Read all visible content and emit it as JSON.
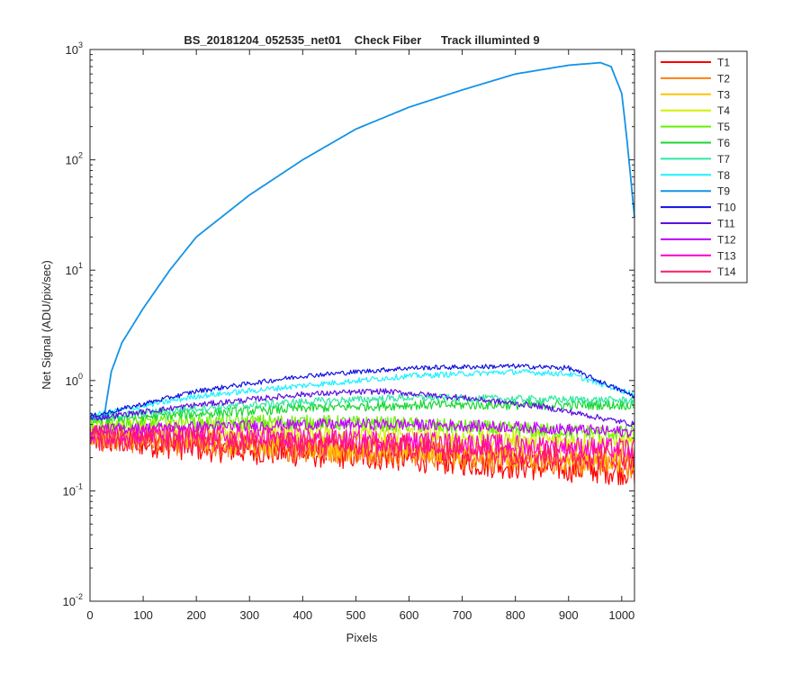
{
  "chart_data": {
    "type": "line",
    "title": "BS_20181204_052535_net01    Check Fiber      Track illuminted 9",
    "xlabel": "Pixels",
    "ylabel": "Net Signal (ADU/pix/sec)",
    "xlim": [
      0,
      1024
    ],
    "ylim": [
      0.01,
      1000
    ],
    "yscale": "log",
    "grid": false,
    "legend_position": "outside-top-right",
    "x_ticks": [
      0,
      100,
      200,
      300,
      400,
      500,
      600,
      700,
      800,
      900,
      1000
    ],
    "y_ticks": [
      {
        "value": 0.01,
        "base": "10",
        "exp": "-2"
      },
      {
        "value": 0.1,
        "base": "10",
        "exp": "-1"
      },
      {
        "value": 1,
        "base": "10",
        "exp": "0"
      },
      {
        "value": 10,
        "base": "10",
        "exp": "1"
      },
      {
        "value": 100,
        "base": "10",
        "exp": "2"
      },
      {
        "value": 1000,
        "base": "10",
        "exp": "3"
      }
    ],
    "series": [
      {
        "name": "T1",
        "color": "#ff0000",
        "noise": 0.3,
        "x": [
          0,
          200,
          400,
          600,
          800,
          1024
        ],
        "y": [
          0.3,
          0.25,
          0.22,
          0.2,
          0.17,
          0.15
        ]
      },
      {
        "name": "T2",
        "color": "#ff7f0e",
        "noise": 0.28,
        "x": [
          0,
          200,
          400,
          600,
          800,
          1024
        ],
        "y": [
          0.3,
          0.27,
          0.24,
          0.22,
          0.19,
          0.17
        ]
      },
      {
        "name": "T3",
        "color": "#ffc400",
        "noise": 0.26,
        "x": [
          0,
          200,
          400,
          600,
          800,
          1024
        ],
        "y": [
          0.32,
          0.29,
          0.26,
          0.24,
          0.21,
          0.19
        ]
      },
      {
        "name": "T4",
        "color": "#d4f000",
        "noise": 0.22,
        "x": [
          0,
          200,
          400,
          600,
          800,
          1024
        ],
        "y": [
          0.36,
          0.36,
          0.35,
          0.32,
          0.29,
          0.27
        ]
      },
      {
        "name": "T5",
        "color": "#66f000",
        "noise": 0.16,
        "x": [
          0,
          200,
          400,
          600,
          800,
          1024
        ],
        "y": [
          0.4,
          0.42,
          0.42,
          0.4,
          0.36,
          0.33
        ]
      },
      {
        "name": "T6",
        "color": "#1ad633",
        "noise": 0.1,
        "x": [
          0,
          200,
          400,
          600,
          800,
          1024
        ],
        "y": [
          0.44,
          0.5,
          0.56,
          0.6,
          0.6,
          0.6
        ]
      },
      {
        "name": "T7",
        "color": "#2ee8a0",
        "noise": 0.08,
        "x": [
          0,
          200,
          400,
          600,
          800,
          1024
        ],
        "y": [
          0.46,
          0.56,
          0.64,
          0.7,
          0.68,
          0.66
        ]
      },
      {
        "name": "T8",
        "color": "#1ef0ff",
        "noise": 0.06,
        "x": [
          0,
          200,
          400,
          600,
          800,
          900,
          1024
        ],
        "y": [
          0.48,
          0.72,
          0.9,
          1.1,
          1.2,
          1.15,
          0.75
        ]
      },
      {
        "name": "T9",
        "color": "#1493e6",
        "noise": 0.0,
        "x": [
          0,
          27,
          30,
          40,
          60,
          100,
          150,
          200,
          300,
          400,
          500,
          600,
          700,
          800,
          900,
          960,
          980,
          1000,
          1010,
          1024
        ],
        "y": [
          0.45,
          0.45,
          0.6,
          1.2,
          2.2,
          4.5,
          10,
          20,
          48,
          100,
          190,
          300,
          430,
          600,
          720,
          760,
          700,
          400,
          150,
          30
        ]
      },
      {
        "name": "T10",
        "color": "#1010e0",
        "noise": 0.05,
        "x": [
          0,
          200,
          400,
          600,
          800,
          900,
          1024
        ],
        "y": [
          0.47,
          0.8,
          1.1,
          1.3,
          1.35,
          1.3,
          0.72
        ]
      },
      {
        "name": "T11",
        "color": "#5a10e0",
        "noise": 0.06,
        "x": [
          0,
          200,
          400,
          550,
          700,
          850,
          1024
        ],
        "y": [
          0.45,
          0.6,
          0.75,
          0.8,
          0.7,
          0.58,
          0.4
        ]
      },
      {
        "name": "T12",
        "color": "#c000ff",
        "noise": 0.12,
        "x": [
          0,
          200,
          400,
          600,
          800,
          1024
        ],
        "y": [
          0.36,
          0.38,
          0.4,
          0.4,
          0.38,
          0.34
        ]
      },
      {
        "name": "T13",
        "color": "#ff00cc",
        "noise": 0.22,
        "x": [
          0,
          200,
          400,
          600,
          800,
          1024
        ],
        "y": [
          0.33,
          0.32,
          0.3,
          0.28,
          0.26,
          0.24
        ]
      },
      {
        "name": "T14",
        "color": "#ff1a66",
        "noise": 0.26,
        "x": [
          0,
          200,
          400,
          600,
          800,
          1024
        ],
        "y": [
          0.3,
          0.28,
          0.26,
          0.25,
          0.22,
          0.2
        ]
      }
    ]
  }
}
